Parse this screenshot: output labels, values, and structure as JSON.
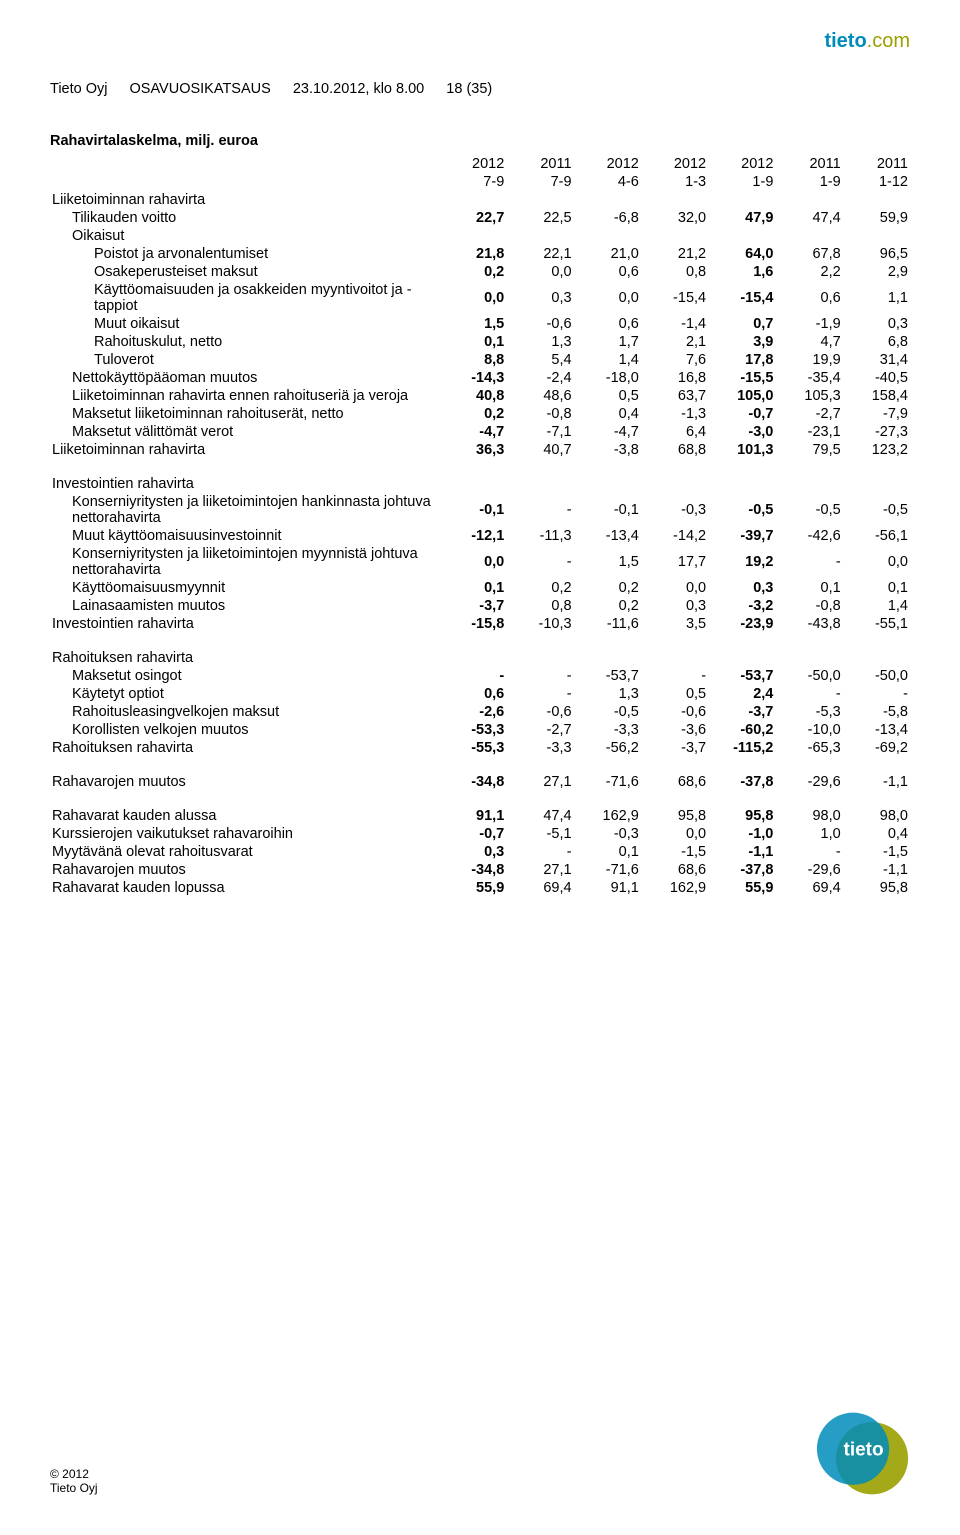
{
  "header": {
    "company": "Tieto Oyj",
    "report_type": "OSAVUOSIKATSAUS",
    "datetime": "23.10.2012, klo 8.00",
    "page": "18 (35)"
  },
  "brand": {
    "tieto": "tieto",
    "dotcom": ".com"
  },
  "title": "Rahavirtalaskelma, milj. euroa",
  "col_years": [
    "2012",
    "2011",
    "2012",
    "2012",
    "2012",
    "2011",
    "2011"
  ],
  "col_periods": [
    "7-9",
    "7-9",
    "4-6",
    "1-3",
    "1-9",
    "1-9",
    "1-12"
  ],
  "rows": [
    {
      "label": "Liiketoiminnan rahavirta",
      "indent": 0,
      "vals": [
        "",
        "",
        "",
        "",
        "",
        "",
        ""
      ]
    },
    {
      "label": "Tilikauden voitto",
      "indent": 1,
      "vals": [
        "22,7",
        "22,5",
        "-6,8",
        "32,0",
        "47,9",
        "47,4",
        "59,9"
      ],
      "bold_cols": [
        0,
        4
      ]
    },
    {
      "label": "Oikaisut",
      "indent": 1,
      "vals": [
        "",
        "",
        "",
        "",
        "",
        "",
        ""
      ]
    },
    {
      "label": "Poistot ja arvonalentumiset",
      "indent": 2,
      "vals": [
        "21,8",
        "22,1",
        "21,0",
        "21,2",
        "64,0",
        "67,8",
        "96,5"
      ],
      "bold_cols": [
        0,
        4
      ]
    },
    {
      "label": "Osakeperusteiset maksut",
      "indent": 2,
      "vals": [
        "0,2",
        "0,0",
        "0,6",
        "0,8",
        "1,6",
        "2,2",
        "2,9"
      ],
      "bold_cols": [
        0,
        4
      ]
    },
    {
      "label": "Käyttöomaisuuden ja osakkeiden myyntivoitot ja -tappiot",
      "indent": 2,
      "vals": [
        "0,0",
        "0,3",
        "0,0",
        "-15,4",
        "-15,4",
        "0,6",
        "1,1"
      ],
      "bold_cols": [
        0,
        4
      ]
    },
    {
      "label": "Muut oikaisut",
      "indent": 2,
      "vals": [
        "1,5",
        "-0,6",
        "0,6",
        "-1,4",
        "0,7",
        "-1,9",
        "0,3"
      ],
      "bold_cols": [
        0,
        4
      ]
    },
    {
      "label": "Rahoituskulut, netto",
      "indent": 2,
      "vals": [
        "0,1",
        "1,3",
        "1,7",
        "2,1",
        "3,9",
        "4,7",
        "6,8"
      ],
      "bold_cols": [
        0,
        4
      ]
    },
    {
      "label": "Tuloverot",
      "indent": 2,
      "vals": [
        "8,8",
        "5,4",
        "1,4",
        "7,6",
        "17,8",
        "19,9",
        "31,4"
      ],
      "bold_cols": [
        0,
        4
      ]
    },
    {
      "label": "Nettokäyttöpääoman muutos",
      "indent": 1,
      "vals": [
        "-14,3",
        "-2,4",
        "-18,0",
        "16,8",
        "-15,5",
        "-35,4",
        "-40,5"
      ],
      "bold_cols": [
        0,
        4
      ]
    },
    {
      "label": "Liiketoiminnan rahavirta ennen rahoituseriä ja veroja",
      "indent": 1,
      "vals": [
        "40,8",
        "48,6",
        "0,5",
        "63,7",
        "105,0",
        "105,3",
        "158,4"
      ],
      "bold_cols": [
        0,
        4
      ]
    },
    {
      "label": "Maksetut liiketoiminnan rahoituserät, netto",
      "indent": 1,
      "vals": [
        "0,2",
        "-0,8",
        "0,4",
        "-1,3",
        "-0,7",
        "-2,7",
        "-7,9"
      ],
      "bold_cols": [
        0,
        4
      ]
    },
    {
      "label": "Maksetut välittömät verot",
      "indent": 1,
      "vals": [
        "-4,7",
        "-7,1",
        "-4,7",
        "6,4",
        "-3,0",
        "-23,1",
        "-27,3"
      ],
      "bold_cols": [
        0,
        4
      ]
    },
    {
      "label": "Liiketoiminnan rahavirta",
      "indent": 0,
      "vals": [
        "36,3",
        "40,7",
        "-3,8",
        "68,8",
        "101,3",
        "79,5",
        "123,2"
      ],
      "bold_cols": [
        0,
        4
      ]
    },
    {
      "gap": true
    },
    {
      "label": "Investointien rahavirta",
      "indent": 0,
      "vals": [
        "",
        "",
        "",
        "",
        "",
        "",
        ""
      ]
    },
    {
      "label": "Konserniyritysten ja liiketoimintojen hankinnasta johtuva nettorahavirta",
      "indent": 1,
      "vals": [
        "-0,1",
        "-",
        "-0,1",
        "-0,3",
        "-0,5",
        "-0,5",
        "-0,5"
      ],
      "bold_cols": [
        0,
        4
      ]
    },
    {
      "label": "Muut käyttöomaisuusinvestoinnit",
      "indent": 1,
      "vals": [
        "-12,1",
        "-11,3",
        "-13,4",
        "-14,2",
        "-39,7",
        "-42,6",
        "-56,1"
      ],
      "bold_cols": [
        0,
        4
      ]
    },
    {
      "label": "Konserniyritysten ja liiketoimintojen myynnistä johtuva nettorahavirta",
      "indent": 1,
      "vals": [
        "0,0",
        "-",
        "1,5",
        "17,7",
        "19,2",
        "-",
        "0,0"
      ],
      "bold_cols": [
        0,
        4
      ]
    },
    {
      "label": "Käyttöomaisuusmyynnit",
      "indent": 1,
      "vals": [
        "0,1",
        "0,2",
        "0,2",
        "0,0",
        "0,3",
        "0,1",
        "0,1"
      ],
      "bold_cols": [
        0,
        4
      ]
    },
    {
      "label": "Lainasaamisten muutos",
      "indent": 1,
      "vals": [
        "-3,7",
        "0,8",
        "0,2",
        "0,3",
        "-3,2",
        "-0,8",
        "1,4"
      ],
      "bold_cols": [
        0,
        4
      ]
    },
    {
      "label": "Investointien rahavirta",
      "indent": 0,
      "vals": [
        "-15,8",
        "-10,3",
        "-11,6",
        "3,5",
        "-23,9",
        "-43,8",
        "-55,1"
      ],
      "bold_cols": [
        0,
        4
      ]
    },
    {
      "gap": true
    },
    {
      "label": "Rahoituksen rahavirta",
      "indent": 0,
      "vals": [
        "",
        "",
        "",
        "",
        "",
        "",
        ""
      ]
    },
    {
      "label": "Maksetut osingot",
      "indent": 1,
      "vals": [
        "-",
        "-",
        "-53,7",
        "-",
        "-53,7",
        "-50,0",
        "-50,0"
      ],
      "bold_cols": [
        0,
        4
      ]
    },
    {
      "label": "Käytetyt optiot",
      "indent": 1,
      "vals": [
        "0,6",
        "-",
        "1,3",
        "0,5",
        "2,4",
        "-",
        "-"
      ],
      "bold_cols": [
        0,
        4
      ]
    },
    {
      "label": "Rahoitusleasingvelkojen maksut",
      "indent": 1,
      "vals": [
        "-2,6",
        "-0,6",
        "-0,5",
        "-0,6",
        "-3,7",
        "-5,3",
        "-5,8"
      ],
      "bold_cols": [
        0,
        4
      ]
    },
    {
      "label": "Korollisten velkojen muutos",
      "indent": 1,
      "vals": [
        "-53,3",
        "-2,7",
        "-3,3",
        "-3,6",
        "-60,2",
        "-10,0",
        "-13,4"
      ],
      "bold_cols": [
        0,
        4
      ]
    },
    {
      "label": "Rahoituksen rahavirta",
      "indent": 0,
      "vals": [
        "-55,3",
        "-3,3",
        "-56,2",
        "-3,7",
        "-115,2",
        "-65,3",
        "-69,2"
      ],
      "bold_cols": [
        0,
        4
      ]
    },
    {
      "gap": true
    },
    {
      "label": "Rahavarojen muutos",
      "indent": 0,
      "vals": [
        "-34,8",
        "27,1",
        "-71,6",
        "68,6",
        "-37,8",
        "-29,6",
        "-1,1"
      ],
      "bold_cols": [
        0,
        4
      ]
    },
    {
      "gap": true
    },
    {
      "label": "Rahavarat kauden alussa",
      "indent": 0,
      "vals": [
        "91,1",
        "47,4",
        "162,9",
        "95,8",
        "95,8",
        "98,0",
        "98,0"
      ],
      "bold_cols": [
        0,
        4
      ]
    },
    {
      "label": "Kurssierojen vaikutukset rahavaroihin",
      "indent": 0,
      "vals": [
        "-0,7",
        "-5,1",
        "-0,3",
        "0,0",
        "-1,0",
        "1,0",
        "0,4"
      ],
      "bold_cols": [
        0,
        4
      ]
    },
    {
      "label": "Myytävänä olevat rahoitusvarat",
      "indent": 0,
      "vals": [
        "0,3",
        "-",
        "0,1",
        "-1,5",
        "-1,1",
        "-",
        "-1,5"
      ],
      "bold_cols": [
        0,
        4
      ]
    },
    {
      "label": "Rahavarojen muutos",
      "indent": 0,
      "vals": [
        "-34,8",
        "27,1",
        "-71,6",
        "68,6",
        "-37,8",
        "-29,6",
        "-1,1"
      ],
      "bold_cols": [
        0,
        4
      ]
    },
    {
      "label": "Rahavarat kauden lopussa",
      "indent": 0,
      "vals": [
        "55,9",
        "69,4",
        "91,1",
        "162,9",
        "55,9",
        "69,4",
        "95,8"
      ],
      "bold_cols": [
        0,
        4
      ]
    }
  ],
  "footer": {
    "year": "© 2012",
    "company": "Tieto Oyj"
  },
  "colors": {
    "text": "#000000",
    "brand_blue": "#008cba",
    "brand_green": "#99a000",
    "background": "#ffffff"
  }
}
